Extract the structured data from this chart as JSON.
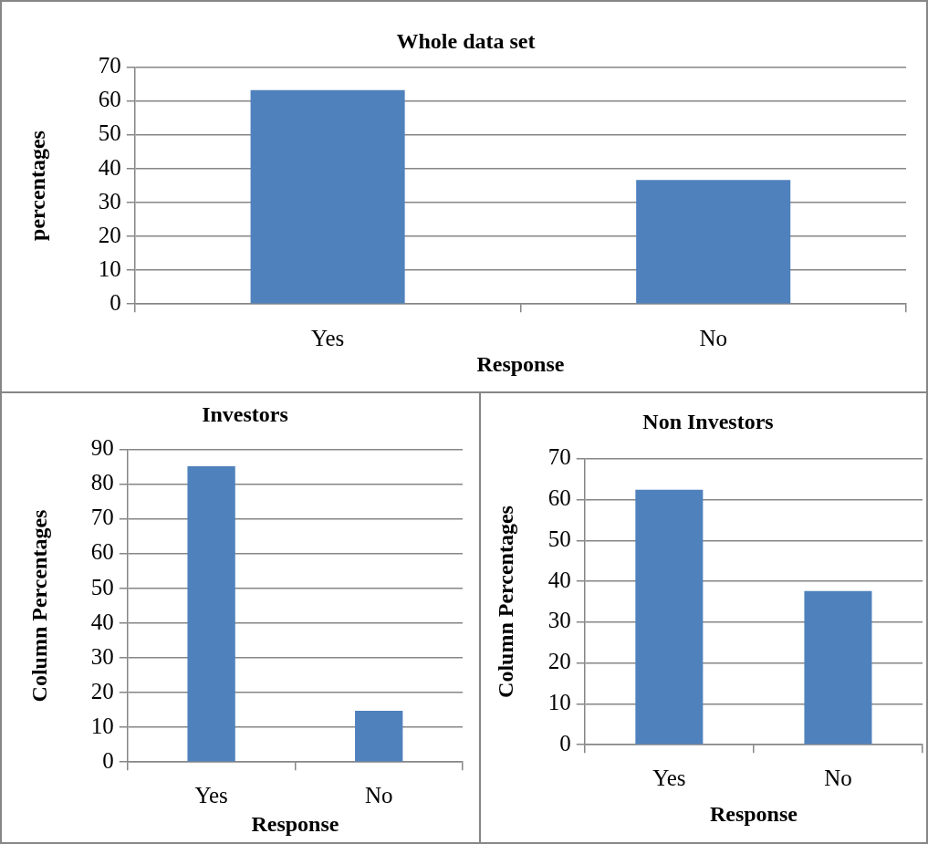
{
  "chart_data": [
    {
      "type": "bar",
      "title": "Whole data set",
      "xlabel": "Response",
      "ylabel": "percentages",
      "categories": [
        "Yes",
        "No"
      ],
      "values": [
        63.3,
        36.7
      ],
      "color": "#4f81bd",
      "ylim": [
        0,
        70
      ],
      "yticks": [
        0,
        10,
        20,
        30,
        40,
        50,
        60,
        70
      ],
      "grid": "y"
    },
    {
      "type": "bar",
      "title": "Investors",
      "xlabel": "Response",
      "ylabel": "Column Percentages",
      "categories": [
        "Yes",
        "No"
      ],
      "values": [
        85.2,
        14.8
      ],
      "color": "#4f81bd",
      "ylim": [
        0,
        90
      ],
      "yticks": [
        0,
        10,
        20,
        30,
        40,
        50,
        60,
        70,
        80,
        90
      ],
      "grid": "y"
    },
    {
      "type": "bar",
      "title": "Non Investors",
      "xlabel": "Response",
      "ylabel": "Column Percentages",
      "categories": [
        "Yes",
        "No"
      ],
      "values": [
        62.4,
        37.6
      ],
      "color": "#4f81bd",
      "ylim": [
        0,
        70
      ],
      "yticks": [
        0,
        10,
        20,
        30,
        40,
        50,
        60,
        70
      ],
      "grid": "y"
    }
  ]
}
